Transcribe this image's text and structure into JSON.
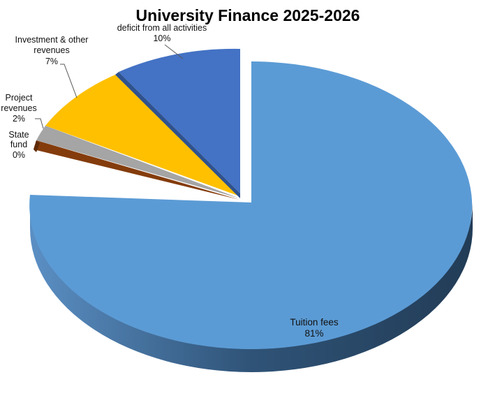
{
  "chart_data": {
    "type": "pie",
    "title": "University Finance 2025-2026",
    "style": "3d-exploded",
    "slices": [
      {
        "label": "Tuition fees",
        "value": 81,
        "display": "81%",
        "color": "#5B9BD5"
      },
      {
        "label": "State fund",
        "value": 0,
        "display": "0%",
        "color": "#843C0C"
      },
      {
        "label": "Project revenues",
        "value": 2,
        "display": "2%",
        "color": "#A5A5A5"
      },
      {
        "label": "Investment & other revenues",
        "value": 7,
        "display": "7%",
        "color": "#FFC000"
      },
      {
        "label": "deficit from all activities",
        "value": 10,
        "display": "10%",
        "color": "#4472C4"
      }
    ],
    "legend": "none"
  }
}
